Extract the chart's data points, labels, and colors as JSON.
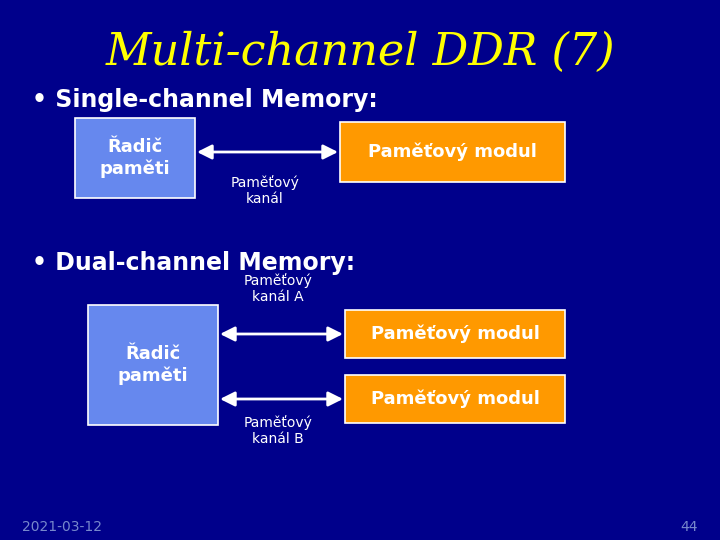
{
  "title": "Multi-channel DDR (7)",
  "title_color": "#FFFF00",
  "bg_color": "#00008B",
  "bullet_color": "#FFFFFF",
  "text_color": "#FFFFFF",
  "box_blue_color": "#6688EE",
  "box_orange_color": "#FF9900",
  "section1_label": "• Single-channel Memory:",
  "section2_label": "• Dual-channel Memory:",
  "radic_label": "Řadič\npaměti",
  "pameti_modul_label": "Paměťový modul",
  "pameti_kanal_label": "Paměťový\nkanál",
  "pameti_kanal_A_label": "Paměťový\nkanál A",
  "pameti_kanal_B_label": "Paměťový\nkanál B",
  "date_label": "2021-03-12",
  "page_label": "44",
  "font_size_title": 32,
  "font_size_section": 17,
  "font_size_box": 13,
  "font_size_kanal": 10,
  "font_size_footer": 10
}
